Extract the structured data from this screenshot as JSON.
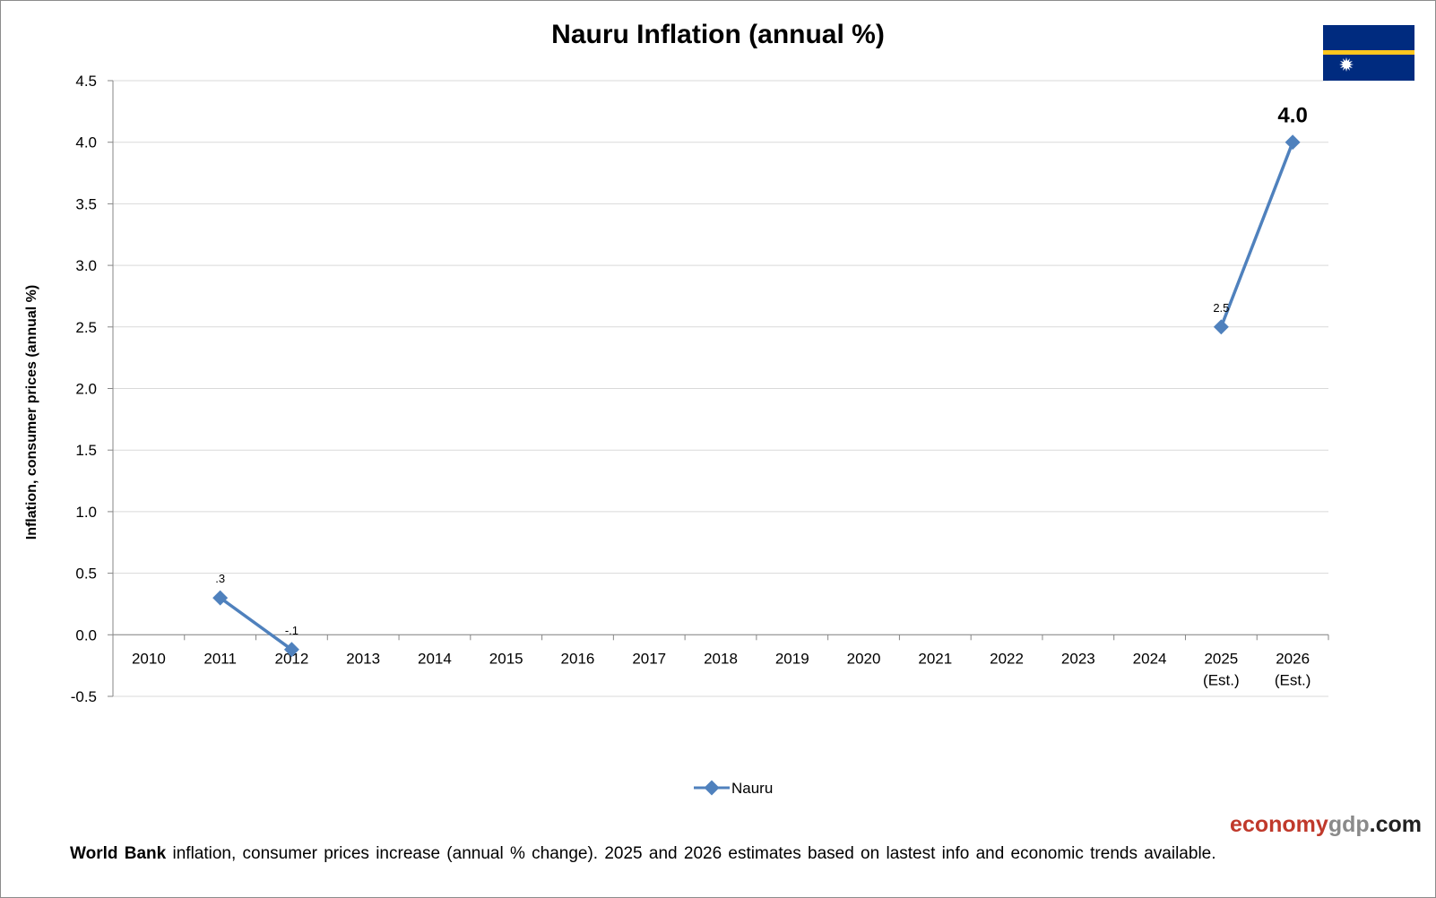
{
  "chart_data": {
    "type": "line",
    "title": "Nauru Inflation (annual %)",
    "ylabel": "Inflation, consumer prices (annual %)",
    "xlabel": "",
    "categories": [
      "2010",
      "2011",
      "2012",
      "2013",
      "2014",
      "2015",
      "2016",
      "2017",
      "2018",
      "2019",
      "2020",
      "2021",
      "2022",
      "2023",
      "2024",
      "2025",
      "2026"
    ],
    "category_sublabels": [
      "",
      "",
      "",
      "",
      "",
      "",
      "",
      "",
      "",
      "",
      "",
      "",
      "",
      "",
      "",
      "(Est.)",
      "(Est.)"
    ],
    "y_ticks": [
      "4.5",
      "4.0",
      "3.5",
      "3.0",
      "2.5",
      "2.0",
      "1.5",
      "1.0",
      "0.5",
      "0.0",
      "-0.5"
    ],
    "ylim": [
      -0.5,
      4.5
    ],
    "grid": true,
    "legend": "bottom",
    "series": [
      {
        "name": "Nauru",
        "color": "#4f81bd",
        "values": [
          null,
          0.3,
          -0.12,
          null,
          null,
          null,
          null,
          null,
          null,
          null,
          null,
          null,
          null,
          null,
          null,
          2.5,
          4.0
        ],
        "data_labels": [
          null,
          ".3",
          "-.1",
          null,
          null,
          null,
          null,
          null,
          null,
          null,
          null,
          null,
          null,
          null,
          null,
          "2.5",
          "4.0"
        ]
      }
    ]
  },
  "footer": {
    "source_bold": "World Bank",
    "note": " inflation, consumer prices increase (annual % change).  2025 and 2026 estimates based on lastest info and economic trends available."
  },
  "brand": {
    "part1": "economy",
    "part2": "gdp",
    "part3": ".com"
  },
  "flag": {
    "icon": "nauru-flag-icon",
    "colors": {
      "field": "#002b7f",
      "stripe": "#ffc61e",
      "star": "#ffffff"
    }
  }
}
